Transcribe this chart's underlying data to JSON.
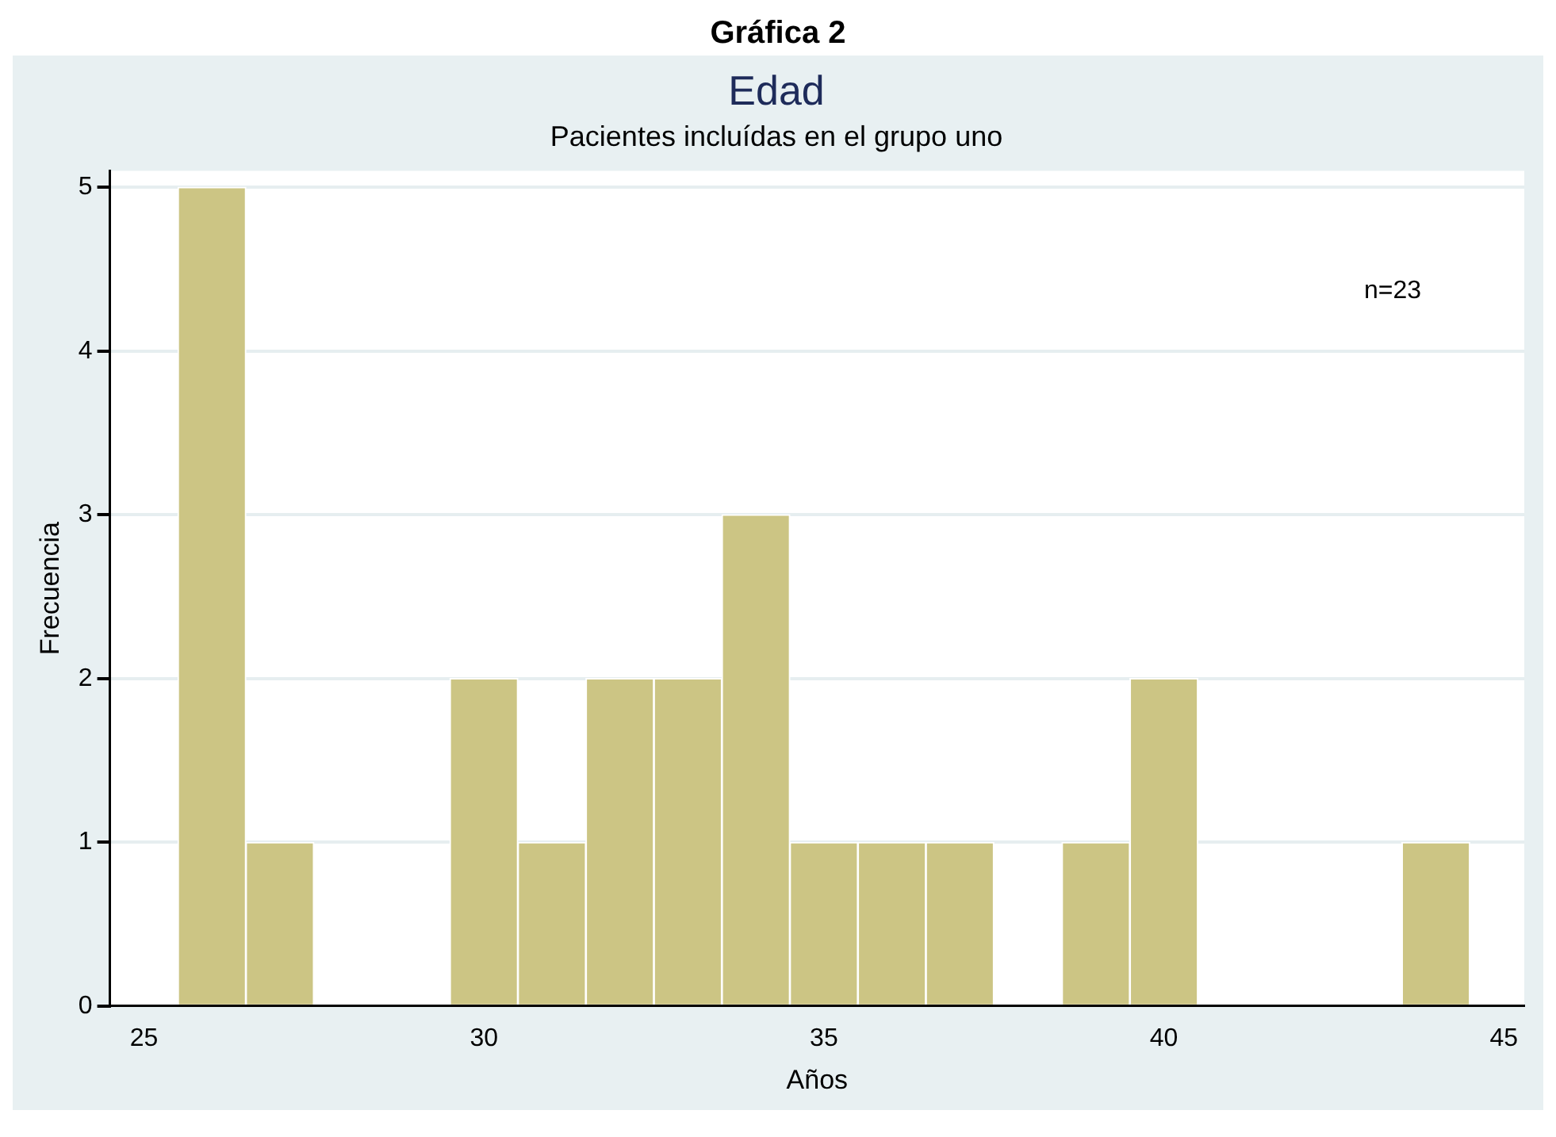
{
  "chart_data": {
    "type": "histogram",
    "title": "Edad",
    "subtitle": "Pacientes incluídas en el grupo uno",
    "xlabel": "Años",
    "ylabel": "Frecuencia",
    "annotations": [
      "Gráfica 2",
      "n=23"
    ],
    "bins": [
      25.5,
      26.5,
      27.5,
      28.5,
      29.5,
      30.5,
      31.5,
      32.5,
      33.5,
      34.5,
      35.5,
      36.5,
      37.5,
      38.5,
      39.5,
      40.5,
      41.5,
      42.5,
      43.5,
      44.5
    ],
    "values": [
      5,
      1,
      0,
      0,
      2,
      1,
      2,
      2,
      3,
      1,
      1,
      1,
      0,
      1,
      2,
      0,
      0,
      0,
      1
    ],
    "color": "#ccc584",
    "xlim": [
      24.5,
      45.3
    ],
    "xticks": [
      25,
      30,
      35,
      40,
      45
    ],
    "ylim": [
      0,
      5.1
    ],
    "yticks": [
      0,
      1,
      2,
      3,
      4,
      5
    ],
    "grid": "y",
    "legend": false
  }
}
